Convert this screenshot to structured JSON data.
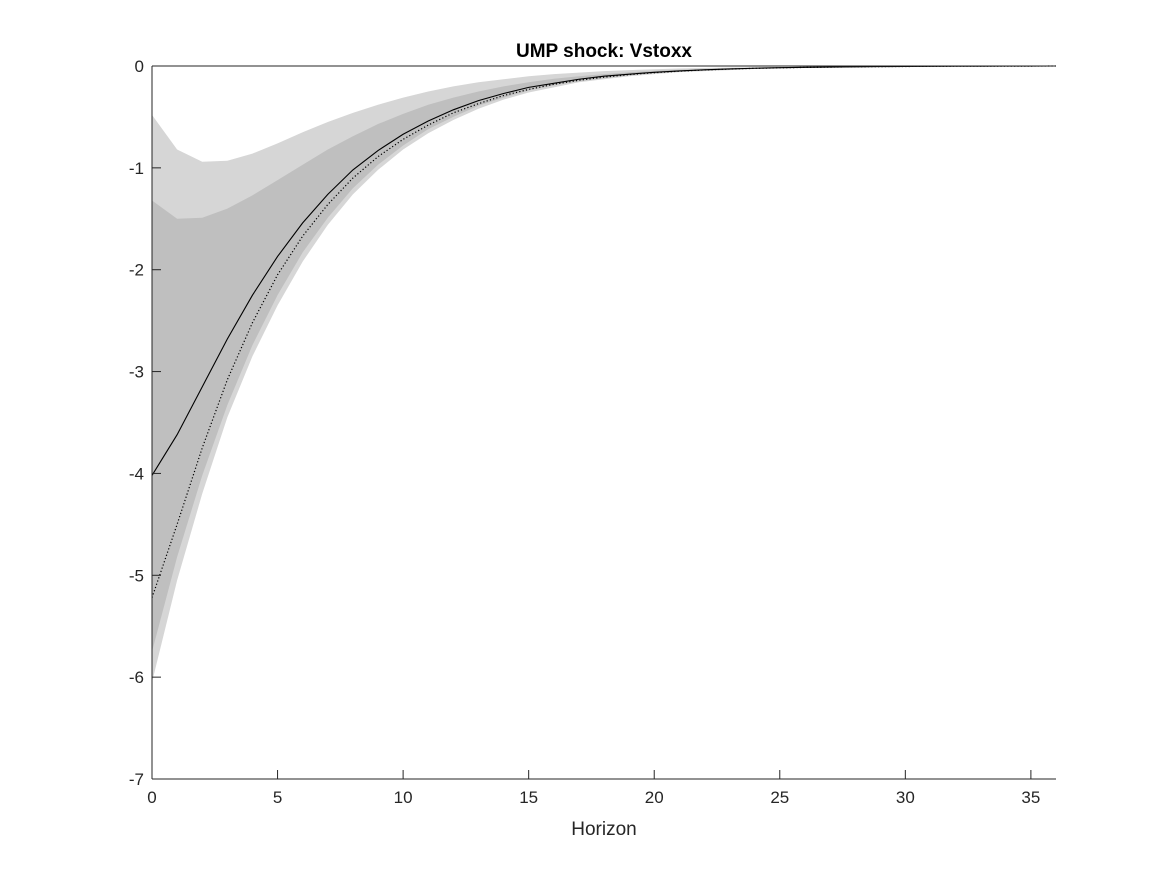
{
  "chart_data": {
    "type": "line",
    "title": "UMP shock: Vstoxx",
    "xlabel": "Horizon",
    "ylabel": "",
    "xlim": [
      0,
      36
    ],
    "ylim": [
      -7,
      0
    ],
    "xticks": [
      0,
      5,
      10,
      15,
      20,
      25,
      30,
      35
    ],
    "yticks": [
      -7,
      -6,
      -5,
      -4,
      -3,
      -2,
      -1,
      0
    ],
    "grid": false,
    "legend": "none",
    "x": [
      0,
      1,
      2,
      3,
      4,
      5,
      6,
      7,
      8,
      9,
      10,
      11,
      12,
      13,
      14,
      15,
      16,
      17,
      18,
      19,
      20,
      21,
      22,
      23,
      24,
      25,
      26,
      27,
      28,
      29,
      30,
      31,
      32,
      33,
      34,
      35,
      36
    ],
    "bands": [
      {
        "name": "outer band",
        "color": "#d6d6d6",
        "upper": [
          -0.48,
          -0.82,
          -0.94,
          -0.93,
          -0.86,
          -0.76,
          -0.65,
          -0.55,
          -0.46,
          -0.38,
          -0.31,
          -0.25,
          -0.2,
          -0.16,
          -0.13,
          -0.1,
          -0.08,
          -0.065,
          -0.05,
          -0.04,
          -0.032,
          -0.025,
          -0.02,
          -0.016,
          -0.012,
          -0.01,
          -0.008,
          -0.006,
          -0.005,
          -0.004,
          -0.003,
          -0.002,
          -0.002,
          -0.001,
          -0.001,
          -0.001,
          0
        ],
        "lower": [
          -6.05,
          -5.05,
          -4.2,
          -3.45,
          -2.85,
          -2.35,
          -1.92,
          -1.56,
          -1.26,
          -1.02,
          -0.82,
          -0.66,
          -0.53,
          -0.42,
          -0.33,
          -0.26,
          -0.21,
          -0.16,
          -0.13,
          -0.1,
          -0.08,
          -0.06,
          -0.05,
          -0.04,
          -0.03,
          -0.024,
          -0.019,
          -0.015,
          -0.012,
          -0.009,
          -0.007,
          -0.005,
          -0.004,
          -0.003,
          -0.002,
          -0.001,
          0
        ]
      },
      {
        "name": "inner band",
        "color": "#bfbfbf",
        "upper": [
          -1.32,
          -1.5,
          -1.49,
          -1.4,
          -1.27,
          -1.12,
          -0.97,
          -0.82,
          -0.69,
          -0.57,
          -0.47,
          -0.38,
          -0.31,
          -0.25,
          -0.2,
          -0.16,
          -0.125,
          -0.1,
          -0.08,
          -0.062,
          -0.048,
          -0.037,
          -0.029,
          -0.022,
          -0.017,
          -0.013,
          -0.01,
          -0.008,
          -0.006,
          -0.005,
          -0.004,
          -0.003,
          -0.002,
          -0.002,
          -0.001,
          -0.001,
          0
        ],
        "lower": [
          -5.75,
          -4.82,
          -4.02,
          -3.33,
          -2.74,
          -2.25,
          -1.83,
          -1.49,
          -1.2,
          -0.97,
          -0.78,
          -0.62,
          -0.5,
          -0.39,
          -0.31,
          -0.24,
          -0.19,
          -0.15,
          -0.12,
          -0.09,
          -0.07,
          -0.055,
          -0.043,
          -0.034,
          -0.026,
          -0.02,
          -0.016,
          -0.012,
          -0.009,
          -0.007,
          -0.005,
          -0.004,
          -0.003,
          -0.002,
          -0.002,
          -0.001,
          0
        ]
      }
    ],
    "series": [
      {
        "style": "solid",
        "color": "#000000",
        "values": [
          -4.02,
          -3.62,
          -3.15,
          -2.68,
          -2.25,
          -1.87,
          -1.54,
          -1.26,
          -1.02,
          -0.83,
          -0.67,
          -0.54,
          -0.43,
          -0.34,
          -0.27,
          -0.21,
          -0.17,
          -0.13,
          -0.1,
          -0.08,
          -0.062,
          -0.048,
          -0.037,
          -0.029,
          -0.022,
          -0.017,
          -0.013,
          -0.01,
          -0.008,
          -0.006,
          -0.004,
          -0.003,
          -0.002,
          -0.002,
          -0.001,
          -0.001,
          0
        ]
      },
      {
        "style": "dotted",
        "color": "#000000",
        "values": [
          -5.22,
          -4.5,
          -3.75,
          -3.08,
          -2.52,
          -2.05,
          -1.67,
          -1.36,
          -1.1,
          -0.89,
          -0.72,
          -0.58,
          -0.46,
          -0.37,
          -0.29,
          -0.23,
          -0.18,
          -0.14,
          -0.11,
          -0.085,
          -0.066,
          -0.051,
          -0.039,
          -0.03,
          -0.023,
          -0.018,
          -0.014,
          -0.011,
          -0.008,
          -0.006,
          -0.005,
          -0.003,
          -0.002,
          -0.002,
          -0.001,
          -0.001,
          0
        ]
      }
    ]
  }
}
